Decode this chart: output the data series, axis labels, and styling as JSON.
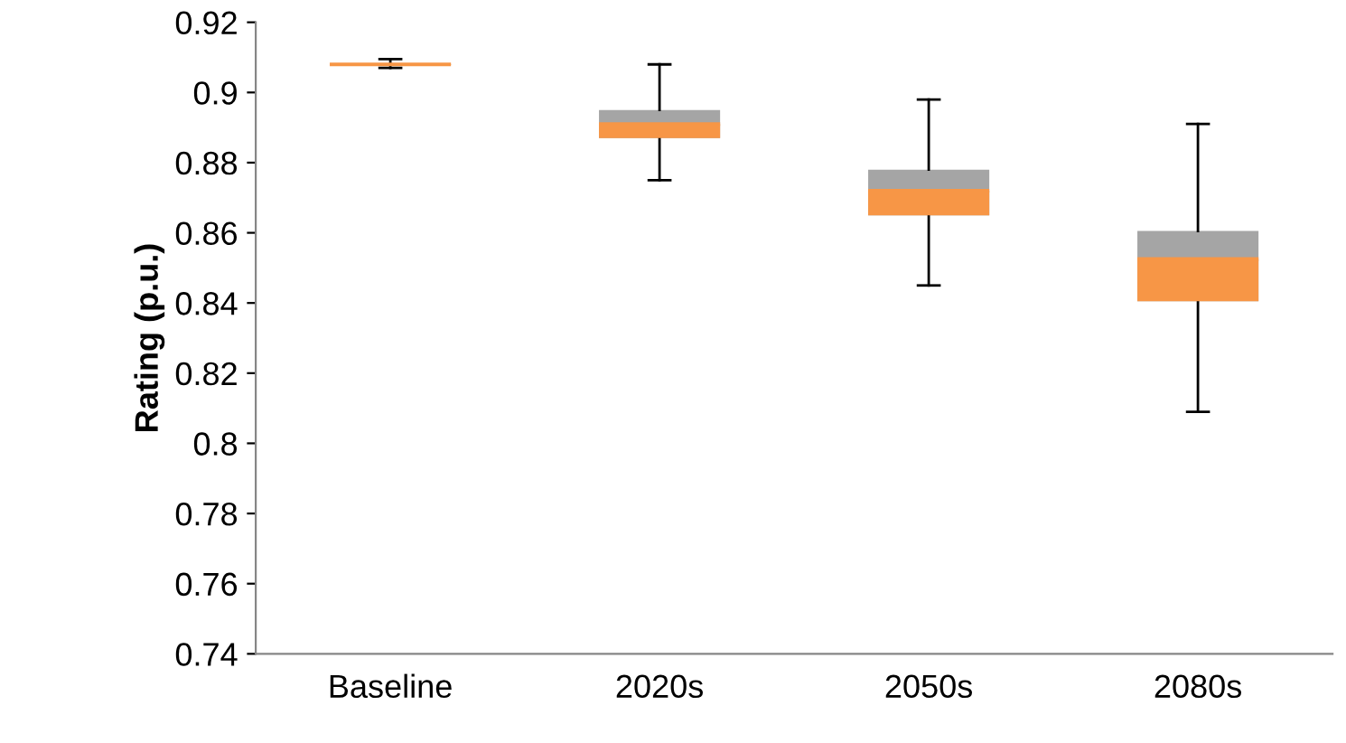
{
  "chart_data": {
    "type": "box",
    "ylabel": "Rating (p.u.)",
    "categories": [
      "Baseline",
      "2020s",
      "2050s",
      "2080s"
    ],
    "series": [
      {
        "color": "#f79646",
        "colors": [
          "#a5a5a5",
          "#a5a5a5",
          "#a5a5a5",
          "#a5a5a5"
        ],
        "boxes": [
          {
            "low": 0.907,
            "q1": 0.9078,
            "median": 0.908,
            "q3": 0.9082,
            "high": 0.9095
          },
          {
            "low": 0.875,
            "q1": 0.887,
            "median": 0.891,
            "q3": 0.895,
            "high": 0.908
          },
          {
            "low": 0.845,
            "q1": 0.865,
            "median": 0.872,
            "q3": 0.878,
            "high": 0.898
          },
          {
            "low": 0.809,
            "q1": 0.8405,
            "median": 0.8525,
            "q3": 0.8605,
            "high": 0.891
          }
        ]
      }
    ],
    "ylim": [
      0.74,
      0.92
    ],
    "yticks": [
      0.74,
      0.76,
      0.78,
      0.8,
      0.82,
      0.84,
      0.86,
      0.88,
      0.9,
      0.92
    ],
    "grid": false
  }
}
